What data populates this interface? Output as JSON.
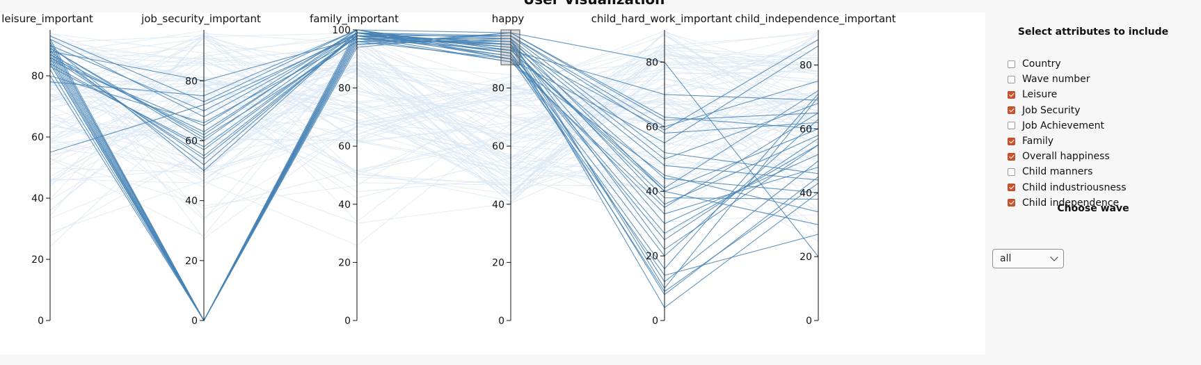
{
  "page": {
    "title": "User Visualization"
  },
  "chart_data": {
    "type": "parallel-coordinates",
    "axes": [
      {
        "name": "leisure_important",
        "range": [
          0,
          95
        ],
        "ticks": [
          0,
          20,
          40,
          60,
          80
        ]
      },
      {
        "name": "job_security_important",
        "range": [
          0,
          97
        ],
        "ticks": [
          0,
          20,
          40,
          60,
          80
        ]
      },
      {
        "name": "family_important",
        "range": [
          0,
          100
        ],
        "ticks": [
          0,
          20,
          40,
          60,
          80,
          100
        ]
      },
      {
        "name": "happy",
        "range": [
          0,
          100
        ],
        "ticks": [
          0,
          20,
          40,
          60,
          80
        ]
      },
      {
        "name": "child_hard_work_important",
        "range": [
          0,
          90
        ],
        "ticks": [
          0,
          20,
          40,
          60,
          80
        ]
      },
      {
        "name": "child_independence_important",
        "range": [
          0,
          91
        ],
        "ticks": [
          0,
          20,
          40,
          60,
          80
        ]
      }
    ],
    "brush": {
      "axis": "happy",
      "range": [
        88,
        100
      ]
    },
    "selected_color": "#4682b4",
    "unselected_color": "#dbe7f2",
    "selected_lines": [
      [
        92,
        0,
        95,
        99,
        80,
        20
      ],
      [
        90,
        0,
        96,
        98,
        60,
        75
      ],
      [
        88,
        0,
        97,
        97,
        40,
        60
      ],
      [
        86,
        0,
        98,
        96,
        22,
        55
      ],
      [
        84,
        0,
        99,
        95,
        12,
        50
      ],
      [
        82,
        0,
        99,
        94,
        8,
        45
      ],
      [
        80,
        0,
        100,
        93,
        40,
        30
      ],
      [
        91,
        0,
        94,
        99,
        62,
        65
      ],
      [
        89,
        0,
        95,
        97,
        10,
        70
      ],
      [
        87,
        0,
        96,
        96,
        36,
        58
      ],
      [
        85,
        0,
        97,
        95,
        4,
        40
      ],
      [
        90,
        50,
        99,
        98,
        58,
        62
      ],
      [
        88,
        52,
        99,
        97,
        50,
        68
      ],
      [
        86,
        55,
        98,
        96,
        48,
        44
      ],
      [
        84,
        57,
        98,
        95,
        30,
        52
      ],
      [
        89,
        60,
        99,
        94,
        38,
        38
      ],
      [
        87,
        62,
        100,
        93,
        41,
        72
      ],
      [
        85,
        65,
        100,
        92,
        25,
        57
      ],
      [
        92,
        68,
        99,
        91,
        20,
        63
      ],
      [
        90,
        70,
        99,
        90,
        14,
        27
      ],
      [
        55,
        72,
        98,
        89,
        35,
        65
      ],
      [
        78,
        75,
        100,
        90,
        55,
        86
      ],
      [
        88,
        80,
        97,
        93,
        70,
        69
      ],
      [
        83,
        58,
        98,
        98,
        52,
        46
      ],
      [
        86,
        63,
        99,
        92,
        27,
        55
      ],
      [
        93,
        73,
        100,
        99,
        63,
        60
      ],
      [
        80,
        66,
        97,
        95,
        44,
        40
      ],
      [
        87,
        54,
        98,
        91,
        16,
        71
      ],
      [
        89,
        61,
        96,
        90,
        33,
        48
      ],
      [
        91,
        0,
        98,
        94,
        59,
        88
      ],
      [
        84,
        0,
        97,
        89,
        45,
        34
      ],
      [
        86,
        0,
        99,
        92,
        9,
        43
      ]
    ]
  },
  "panel": {
    "attributes_heading": "Select attributes to include",
    "attributes": [
      {
        "label": "Country",
        "checked": false
      },
      {
        "label": "Wave number",
        "checked": false
      },
      {
        "label": "Leisure",
        "checked": true
      },
      {
        "label": "Job Security",
        "checked": true
      },
      {
        "label": "Job Achievement",
        "checked": false
      },
      {
        "label": "Family",
        "checked": true
      },
      {
        "label": "Overall happiness",
        "checked": true
      },
      {
        "label": "Child manners",
        "checked": false
      },
      {
        "label": "Child industriousness",
        "checked": true
      },
      {
        "label": "Child independence",
        "checked": true
      }
    ],
    "wave_heading": "Choose wave",
    "wave_value": "all"
  }
}
